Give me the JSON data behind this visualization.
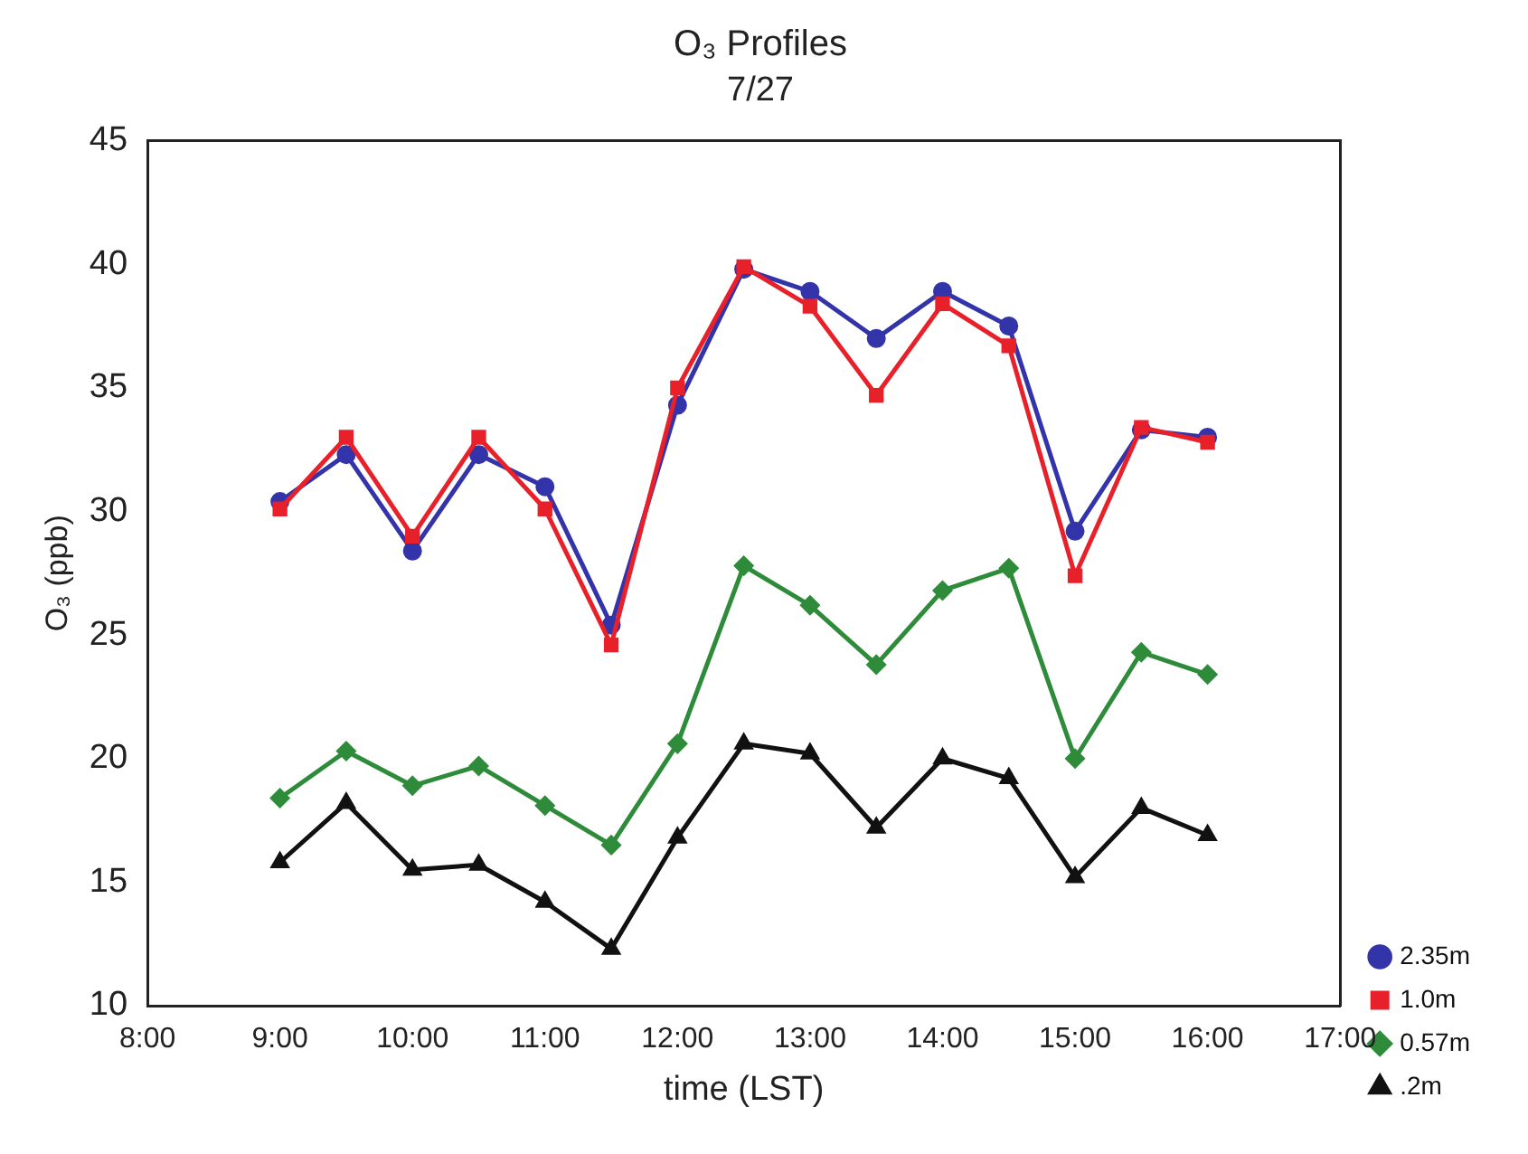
{
  "chart_data": {
    "type": "line",
    "title": "O₃ Profiles",
    "subtitle": "7/27",
    "xlabel": "time (LST)",
    "ylabel": "O₃ (ppb)",
    "x": [
      9,
      9.5,
      10,
      10.5,
      11,
      11.5,
      12,
      12.5,
      13,
      13.5,
      14,
      14.5,
      15,
      15.5,
      16
    ],
    "xlim": [
      8,
      17
    ],
    "xticks": [
      {
        "value": 8,
        "label": "8:00"
      },
      {
        "value": 9,
        "label": "9:00"
      },
      {
        "value": 10,
        "label": "10:00"
      },
      {
        "value": 11,
        "label": "11:00"
      },
      {
        "value": 12,
        "label": "12:00"
      },
      {
        "value": 13,
        "label": "13:00"
      },
      {
        "value": 14,
        "label": "14:00"
      },
      {
        "value": 15,
        "label": "15:00"
      },
      {
        "value": 16,
        "label": "16:00"
      },
      {
        "value": 17,
        "label": "17:00"
      }
    ],
    "ylim": [
      10,
      45
    ],
    "yticks": [
      10,
      15,
      20,
      25,
      30,
      35,
      40,
      45
    ],
    "grid": false,
    "legend": "bottom right",
    "line_style": "solid",
    "series": [
      {
        "name": "2.35m",
        "color": "#3333aa",
        "marker": "circle",
        "values": [
          30.4,
          32.3,
          28.4,
          32.3,
          31.0,
          25.4,
          34.3,
          39.8,
          38.9,
          37.0,
          38.9,
          37.5,
          29.2,
          33.3,
          33.0
        ]
      },
      {
        "name": "1.0m",
        "color": "#e8202a",
        "marker": "square",
        "values": [
          30.1,
          33.0,
          29.0,
          33.0,
          30.1,
          24.6,
          35.0,
          39.9,
          38.3,
          34.7,
          38.4,
          36.7,
          27.4,
          33.4,
          32.8
        ]
      },
      {
        "name": "0.57m",
        "color": "#2e8b3a",
        "marker": "diamond",
        "values": [
          18.4,
          20.3,
          18.9,
          19.7,
          18.1,
          16.5,
          20.6,
          27.8,
          26.2,
          23.8,
          26.8,
          27.7,
          20.0,
          24.3,
          23.4
        ]
      },
      {
        "name": ".2m",
        "color": "#111111",
        "marker": "triangle",
        "values": [
          15.8,
          18.2,
          15.5,
          15.7,
          14.2,
          12.3,
          16.8,
          20.6,
          20.2,
          17.2,
          20.0,
          19.2,
          15.2,
          18.0,
          16.9
        ]
      }
    ]
  }
}
